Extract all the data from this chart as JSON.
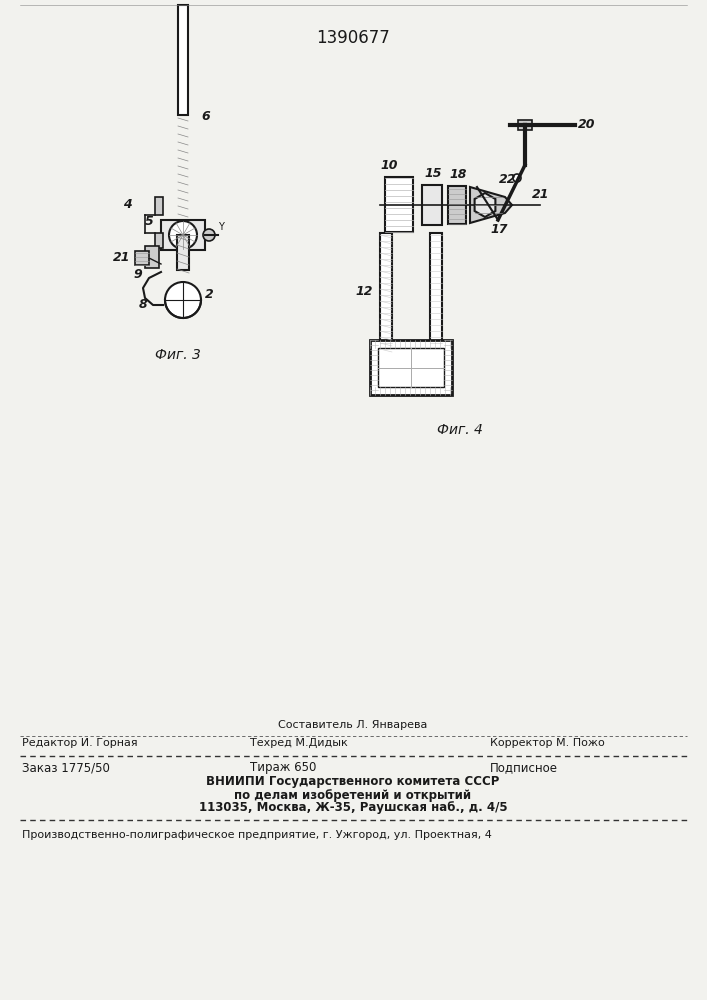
{
  "patent_number": "1390677",
  "background_color": "#f2f2ee",
  "fig3_label": "Фиг. 3",
  "fig4_label": "Фиг. 4",
  "footer_sestavitel": "Составитель Л. Январева",
  "footer_redaktor": "Редактор И. Горная",
  "footer_tehred": "Техред М.Дидык",
  "footer_korrektor": "Корректор М. Пожо",
  "footer_zakaz": "Заказ 1775/50",
  "footer_tirazh": "Тираж 650",
  "footer_podpisnoe": "Подписное",
  "footer_vniipи": "ВНИИПИ Государственного комитета СССР",
  "footer_po_delam": "по делам изобретений и открытий",
  "footer_address": "113035, Москва, Ж-35, Раушская наб., д. 4/5",
  "footer_production": "Производственно-полиграфическое предприятие, г. Ужгород, ул. Проектная, 4"
}
